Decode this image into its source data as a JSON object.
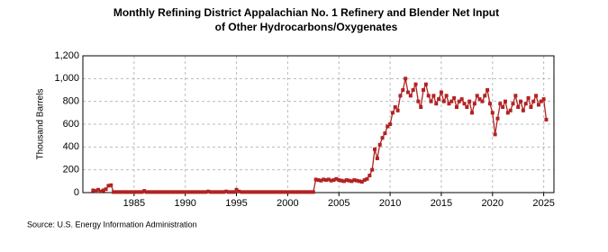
{
  "chart_data": {
    "type": "line",
    "title": "Monthly Refining District Appalachian No. 1 Refinery and Blender Net Input of Other Hydrocarbons/Oxygenates",
    "y_label": "Thousand Barrels",
    "source": "Source: U.S. Energy Information Administration",
    "x": [
      1981,
      1981.25,
      1981.5,
      1981.75,
      1982,
      1982.25,
      1982.5,
      1982.75,
      1983,
      1983.25,
      1983.5,
      1983.75,
      1984,
      1984.25,
      1984.5,
      1984.75,
      1985,
      1985.25,
      1985.5,
      1985.75,
      1986,
      1986.25,
      1986.5,
      1986.75,
      1987,
      1987.25,
      1987.5,
      1987.75,
      1988,
      1988.25,
      1988.5,
      1988.75,
      1989,
      1989.25,
      1989.5,
      1989.75,
      1990,
      1990.25,
      1990.5,
      1990.75,
      1991,
      1991.25,
      1991.5,
      1991.75,
      1992,
      1992.25,
      1992.5,
      1992.75,
      1993,
      1993.25,
      1993.5,
      1993.75,
      1994,
      1994.25,
      1994.5,
      1994.75,
      1995,
      1995.25,
      1995.5,
      1995.75,
      1996,
      1996.25,
      1996.5,
      1996.75,
      1997,
      1997.25,
      1997.5,
      1997.75,
      1998,
      1998.25,
      1998.5,
      1998.75,
      1999,
      1999.25,
      1999.5,
      1999.75,
      2000,
      2000.25,
      2000.5,
      2000.75,
      2001,
      2001.25,
      2001.5,
      2001.75,
      2002,
      2002.25,
      2002.5,
      2002.75,
      2003,
      2003.25,
      2003.5,
      2003.75,
      2004,
      2004.25,
      2004.5,
      2004.75,
      2005,
      2005.25,
      2005.5,
      2005.75,
      2006,
      2006.25,
      2006.5,
      2006.75,
      2007,
      2007.25,
      2007.5,
      2007.75,
      2008,
      2008.25,
      2008.5,
      2008.75,
      2009,
      2009.25,
      2009.5,
      2009.75,
      2010,
      2010.25,
      2010.5,
      2010.75,
      2011,
      2011.25,
      2011.5,
      2011.75,
      2012,
      2012.25,
      2012.5,
      2012.75,
      2013,
      2013.25,
      2013.5,
      2013.75,
      2014,
      2014.25,
      2014.5,
      2014.75,
      2015,
      2015.25,
      2015.5,
      2015.75,
      2016,
      2016.25,
      2016.5,
      2016.75,
      2017,
      2017.25,
      2017.5,
      2017.75,
      2018,
      2018.25,
      2018.5,
      2018.75,
      2019,
      2019.25,
      2019.5,
      2019.75,
      2020,
      2020.25,
      2020.5,
      2020.75,
      2021,
      2021.25,
      2021.5,
      2021.75,
      2022,
      2022.25,
      2022.5,
      2022.75,
      2023,
      2023.25,
      2023.5,
      2023.75,
      2024,
      2024.25,
      2024.5,
      2024.75,
      2025,
      2025.25
    ],
    "series": [
      {
        "color": "#b22222",
        "values": [
          20,
          15,
          25,
          10,
          20,
          30,
          60,
          65,
          5,
          5,
          5,
          5,
          5,
          5,
          5,
          5,
          5,
          5,
          5,
          5,
          15,
          5,
          5,
          5,
          5,
          5,
          5,
          5,
          5,
          5,
          5,
          5,
          5,
          5,
          5,
          5,
          5,
          5,
          5,
          5,
          5,
          5,
          5,
          5,
          5,
          10,
          5,
          5,
          5,
          5,
          5,
          5,
          10,
          5,
          5,
          5,
          25,
          10,
          5,
          5,
          5,
          5,
          5,
          5,
          5,
          5,
          5,
          5,
          5,
          5,
          5,
          5,
          5,
          5,
          5,
          5,
          5,
          5,
          5,
          5,
          5,
          5,
          5,
          5,
          5,
          5,
          5,
          115,
          110,
          105,
          115,
          110,
          115,
          105,
          110,
          120,
          110,
          105,
          100,
          110,
          105,
          100,
          110,
          105,
          100,
          95,
          110,
          120,
          150,
          200,
          380,
          300,
          420,
          480,
          520,
          580,
          600,
          700,
          750,
          720,
          850,
          900,
          1000,
          880,
          850,
          900,
          950,
          800,
          750,
          900,
          950,
          850,
          800,
          850,
          780,
          820,
          880,
          800,
          850,
          780,
          800,
          830,
          750,
          800,
          820,
          780,
          750,
          800,
          700,
          780,
          850,
          820,
          800,
          850,
          900,
          780,
          700,
          510,
          650,
          780,
          750,
          800,
          700,
          720,
          780,
          850,
          750,
          800,
          720,
          780,
          830,
          750,
          800,
          850,
          770,
          800,
          820,
          640
        ]
      }
    ],
    "xlim": [
      1980,
      2026
    ],
    "xticks": [
      1985,
      1990,
      1995,
      2000,
      2005,
      2010,
      2015,
      2020,
      2025
    ],
    "ylim": [
      0,
      1200
    ],
    "yticks": [
      0,
      200,
      400,
      600,
      800,
      {
        "value": 1000,
        "label": "1,000"
      },
      {
        "value": 1200,
        "label": "1,200"
      }
    ],
    "grid": true
  }
}
